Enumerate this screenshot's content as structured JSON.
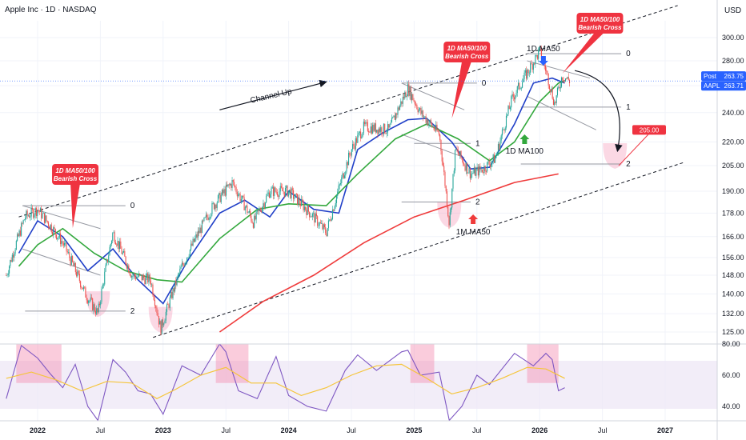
{
  "header": {
    "title": "Apple Inc · 1D · NASDAQ",
    "currency": "USD"
  },
  "colors": {
    "up": "#26a69a",
    "down": "#ef5350",
    "ma50": "#2140c8",
    "ma100": "#33a83d",
    "ma_1m": "#ef3b3b",
    "rsi": "#7e57c2",
    "rsi_ma": "#f5c53b",
    "callout": "#ef3340",
    "rsi_band": "#ede7f6",
    "pink_zone": "#f48fb1"
  },
  "chart_data": [
    {
      "type": "line",
      "title": "Apple Inc · 1D · NASDAQ",
      "price_axis": [
        300,
        280,
        260,
        240,
        220,
        205,
        190,
        178,
        166,
        156,
        148,
        140,
        132,
        125
      ],
      "time_axis": [
        "2022",
        "Jul",
        "2023",
        "Jul",
        "2024",
        "Jul",
        "2025",
        "Jul",
        "2026",
        "Jul",
        "2027"
      ],
      "scale": "log",
      "price_tags": [
        {
          "label": "Post",
          "value": 263.75
        },
        {
          "label": "AAPL",
          "value": 263.71
        },
        {
          "label": "",
          "value": 205.0
        }
      ],
      "series": [
        {
          "name": "1D MA50",
          "values": [
            [
              2021.85,
              158
            ],
            [
              2022.0,
              174
            ],
            [
              2022.2,
              166
            ],
            [
              2022.4,
              150
            ],
            [
              2022.6,
              160
            ],
            [
              2022.8,
              146
            ],
            [
              2023.0,
              136
            ],
            [
              2023.2,
              155
            ],
            [
              2023.45,
              178
            ],
            [
              2023.65,
              185
            ],
            [
              2023.85,
              176
            ],
            [
              2024.0,
              190
            ],
            [
              2024.2,
              180
            ],
            [
              2024.4,
              178
            ],
            [
              2024.55,
              215
            ],
            [
              2024.75,
              226
            ],
            [
              2024.95,
              235
            ],
            [
              2025.1,
              236
            ],
            [
              2025.3,
              220
            ],
            [
              2025.45,
              203
            ],
            [
              2025.6,
              204
            ],
            [
              2025.8,
              232
            ],
            [
              2025.95,
              262
            ],
            [
              2026.1,
              266
            ],
            [
              2026.2,
              262
            ]
          ]
        },
        {
          "name": "1D MA100",
          "values": [
            [
              2021.85,
              152
            ],
            [
              2022.0,
              162
            ],
            [
              2022.2,
              170
            ],
            [
              2022.45,
              158
            ],
            [
              2022.7,
              150
            ],
            [
              2022.95,
              146
            ],
            [
              2023.15,
              145
            ],
            [
              2023.45,
              165
            ],
            [
              2023.75,
              180
            ],
            [
              2024.0,
              183
            ],
            [
              2024.3,
              182
            ],
            [
              2024.55,
              200
            ],
            [
              2024.85,
              222
            ],
            [
              2025.1,
              232
            ],
            [
              2025.35,
              222
            ],
            [
              2025.6,
              208
            ],
            [
              2025.8,
              220
            ],
            [
              2026.0,
              248
            ],
            [
              2026.15,
              262
            ],
            [
              2026.2,
              264
            ]
          ]
        },
        {
          "name": "1M MA50",
          "values": [
            [
              2023.45,
              125
            ],
            [
              2023.8,
              137
            ],
            [
              2024.2,
              148
            ],
            [
              2024.6,
              163
            ],
            [
              2025.0,
              176
            ],
            [
              2025.4,
              185
            ],
            [
              2025.8,
              195
            ],
            [
              2026.15,
              200
            ]
          ]
        },
        {
          "name": "Price",
          "values": [
            [
              2021.75,
              148
            ],
            [
              2021.9,
              176
            ],
            [
              2022.0,
              180
            ],
            [
              2022.2,
              163
            ],
            [
              2022.38,
              140
            ],
            [
              2022.48,
              132
            ],
            [
              2022.6,
              168
            ],
            [
              2022.75,
              148
            ],
            [
              2022.9,
              146
            ],
            [
              2022.98,
              126
            ],
            [
              2023.15,
              152
            ],
            [
              2023.4,
              182
            ],
            [
              2023.55,
              195
            ],
            [
              2023.72,
              173
            ],
            [
              2023.85,
              190
            ],
            [
              2024.0,
              190
            ],
            [
              2024.2,
              176
            ],
            [
              2024.3,
              168
            ],
            [
              2024.5,
              215
            ],
            [
              2024.6,
              230
            ],
            [
              2024.8,
              228
            ],
            [
              2024.95,
              258
            ],
            [
              2025.05,
              240
            ],
            [
              2025.2,
              225
            ],
            [
              2025.28,
              172
            ],
            [
              2025.33,
              215
            ],
            [
              2025.45,
              200
            ],
            [
              2025.55,
              203
            ],
            [
              2025.65,
              210
            ],
            [
              2025.78,
              250
            ],
            [
              2025.9,
              270
            ],
            [
              2026.0,
              288
            ],
            [
              2026.05,
              272
            ],
            [
              2026.12,
              246
            ],
            [
              2026.18,
              268
            ],
            [
              2026.24,
              263.71
            ]
          ]
        }
      ]
    },
    {
      "type": "line",
      "title": "",
      "rsi_axis": [
        80,
        60,
        40
      ],
      "series": [
        {
          "name": "RSI",
          "values": [
            [
              2021.75,
              45
            ],
            [
              2021.87,
              79
            ],
            [
              2022.0,
              71
            ],
            [
              2022.1,
              61
            ],
            [
              2022.2,
              52
            ],
            [
              2022.3,
              67
            ],
            [
              2022.4,
              40
            ],
            [
              2022.48,
              31
            ],
            [
              2022.6,
              70
            ],
            [
              2022.7,
              62
            ],
            [
              2022.8,
              50
            ],
            [
              2022.9,
              48
            ],
            [
              2023.0,
              35
            ],
            [
              2023.15,
              66
            ],
            [
              2023.3,
              60
            ],
            [
              2023.45,
              80
            ],
            [
              2023.5,
              75
            ],
            [
              2023.6,
              50
            ],
            [
              2023.75,
              45
            ],
            [
              2023.9,
              72
            ],
            [
              2024.0,
              47
            ],
            [
              2024.15,
              40
            ],
            [
              2024.3,
              37
            ],
            [
              2024.45,
              63
            ],
            [
              2024.55,
              73
            ],
            [
              2024.7,
              63
            ],
            [
              2024.9,
              75
            ],
            [
              2024.95,
              76
            ],
            [
              2025.05,
              60
            ],
            [
              2025.2,
              62
            ],
            [
              2025.28,
              31
            ],
            [
              2025.38,
              40
            ],
            [
              2025.5,
              60
            ],
            [
              2025.6,
              54
            ],
            [
              2025.8,
              74
            ],
            [
              2025.95,
              66
            ],
            [
              2026.05,
              74
            ],
            [
              2026.1,
              70
            ],
            [
              2026.15,
              50
            ],
            [
              2026.2,
              52
            ]
          ]
        },
        {
          "name": "RSI MA",
          "values": [
            [
              2021.75,
              58
            ],
            [
              2021.95,
              62
            ],
            [
              2022.15,
              57
            ],
            [
              2022.35,
              50
            ],
            [
              2022.55,
              56
            ],
            [
              2022.75,
              55
            ],
            [
              2022.95,
              45
            ],
            [
              2023.1,
              51
            ],
            [
              2023.3,
              60
            ],
            [
              2023.5,
              65
            ],
            [
              2023.7,
              55
            ],
            [
              2023.9,
              55
            ],
            [
              2024.1,
              47
            ],
            [
              2024.3,
              52
            ],
            [
              2024.5,
              60
            ],
            [
              2024.7,
              66
            ],
            [
              2024.9,
              67
            ],
            [
              2025.1,
              58
            ],
            [
              2025.3,
              48
            ],
            [
              2025.5,
              52
            ],
            [
              2025.7,
              58
            ],
            [
              2025.9,
              65
            ],
            [
              2026.05,
              64
            ],
            [
              2026.2,
              58
            ]
          ]
        }
      ]
    }
  ],
  "annotations": {
    "channel_label": "Channel Up",
    "callouts": [
      {
        "line1": "1D MA50/100",
        "line2": "Bearish Cross"
      },
      {
        "line1": "1D MA50/100",
        "line2": "Bearish Cross"
      },
      {
        "line1": "1D MA50/100",
        "line2": "Bearish Cross"
      }
    ],
    "arrow_labels": {
      "ma50_top": "1D MA50",
      "ma100": "1D MA100",
      "ma50_1m": "1M MA50"
    },
    "fib_labels": [
      "0",
      "2",
      "0",
      "1",
      "2",
      "0",
      "1",
      "2"
    ]
  }
}
